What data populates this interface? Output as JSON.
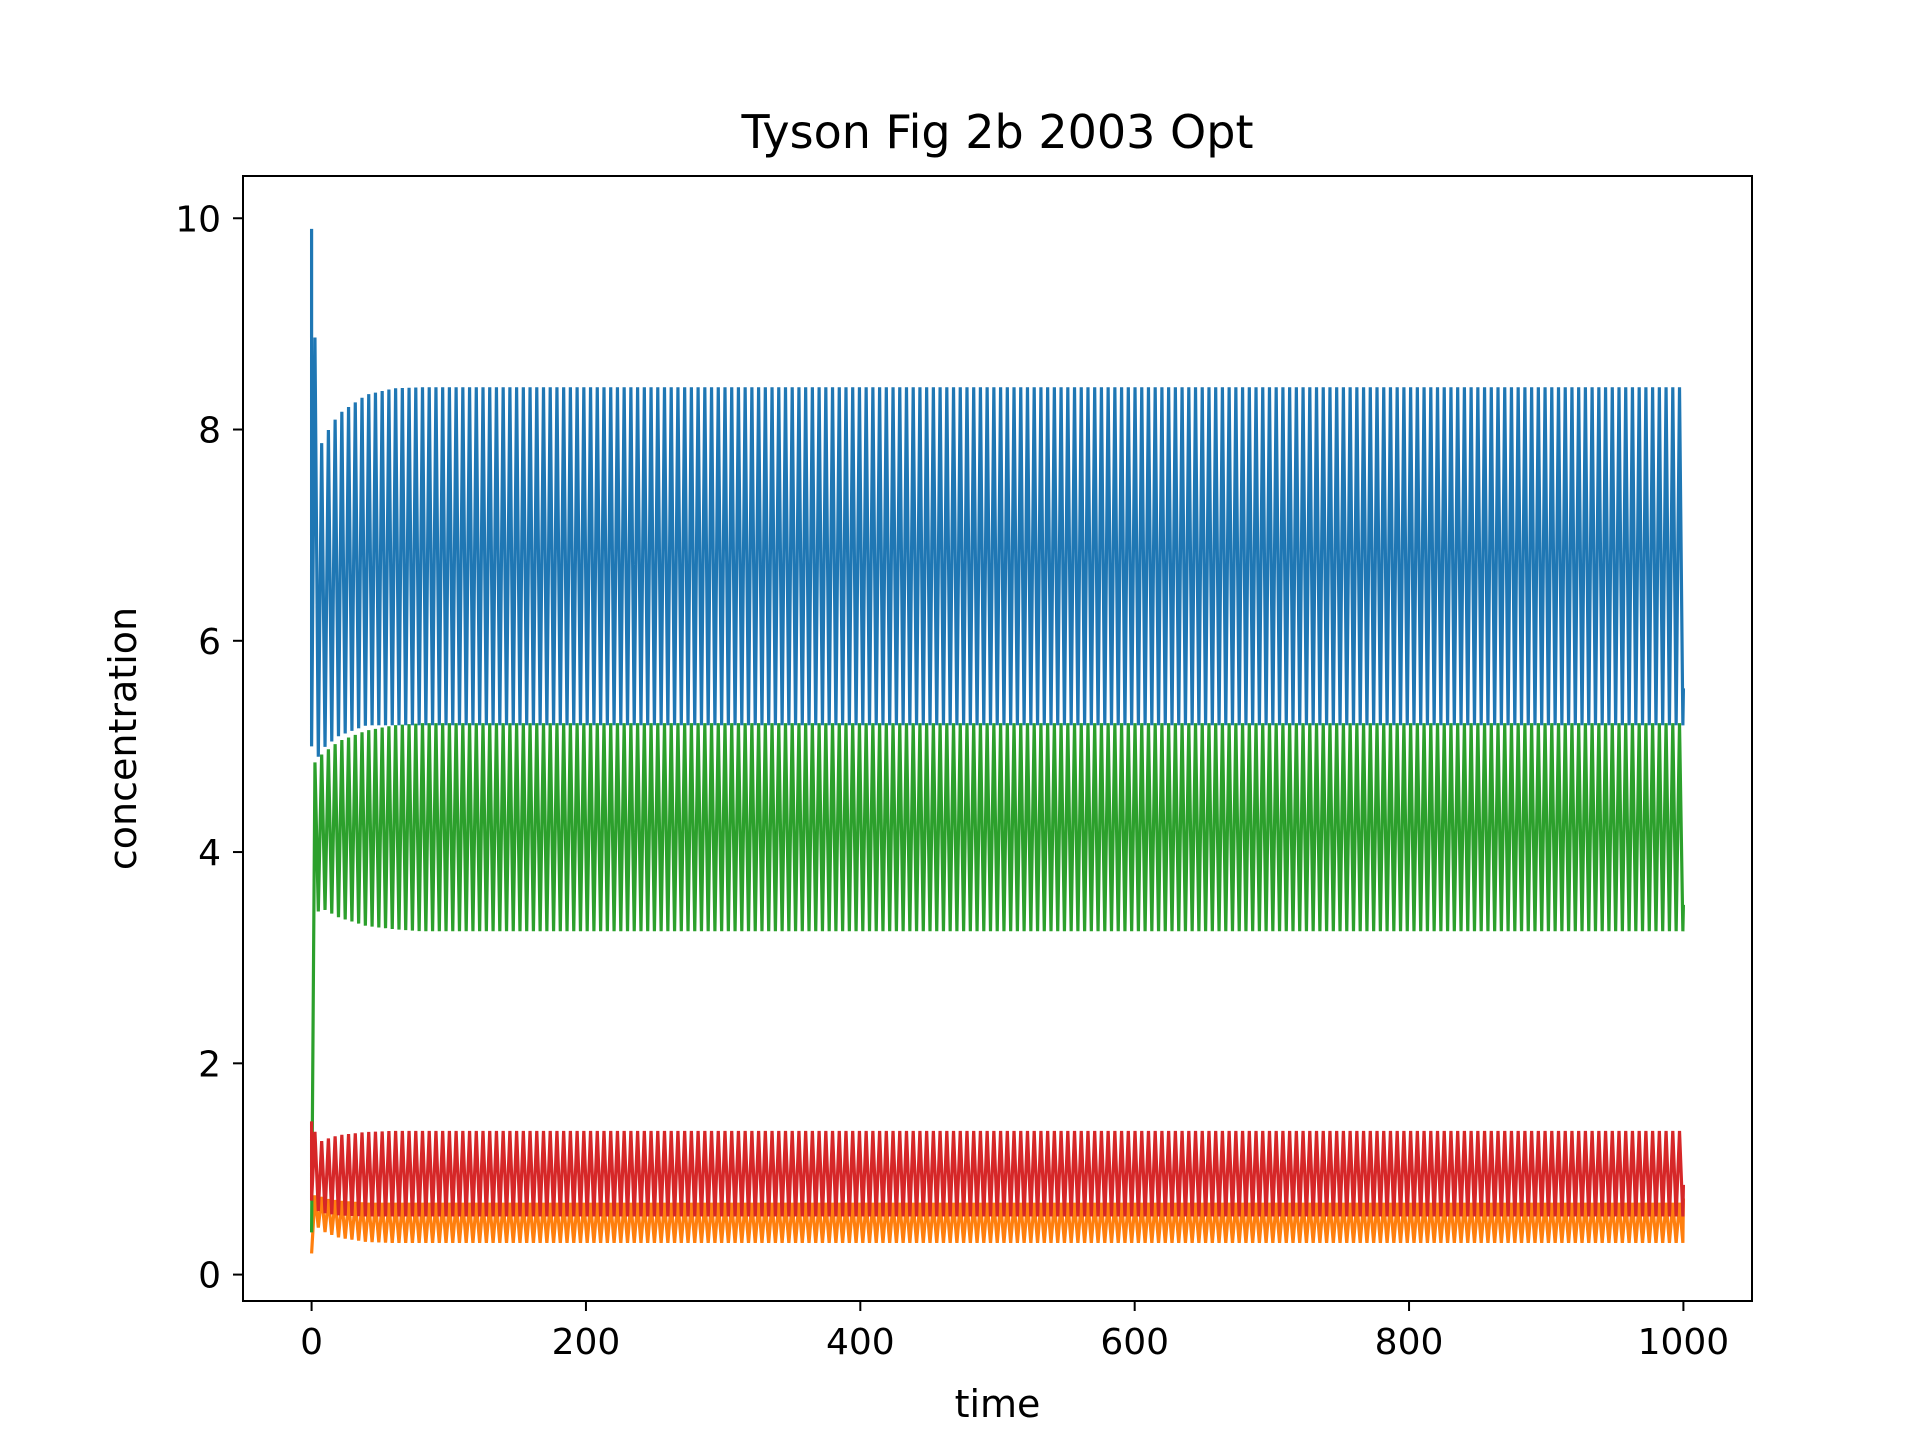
{
  "chart_data": {
    "type": "line",
    "title": "Tyson Fig 2b 2003 Opt",
    "xlabel": "time",
    "ylabel": "concentration",
    "xlim": [
      -50,
      1050
    ],
    "ylim": [
      -0.25,
      10.4
    ],
    "x_ticks": [
      0,
      200,
      400,
      600,
      800,
      1000
    ],
    "x_tick_labels": [
      "0",
      "200",
      "400",
      "600",
      "800",
      "1000"
    ],
    "y_ticks": [
      0,
      2,
      4,
      6,
      8,
      10
    ],
    "y_tick_labels": [
      "0",
      "2",
      "4",
      "6",
      "8",
      "10"
    ],
    "grid": false,
    "legend": "none",
    "period": 4.9,
    "series": [
      {
        "color": "#1f77b4",
        "initial_value": 9.9,
        "x": [
          0,
          5,
          10,
          20,
          40,
          60,
          80,
          100,
          200,
          400,
          600,
          800,
          1000
        ],
        "max": [
          9.9,
          7.8,
          7.95,
          8.15,
          8.33,
          8.39,
          8.4,
          8.4,
          8.4,
          8.4,
          8.4,
          8.4,
          8.4
        ],
        "min": [
          5.0,
          4.9,
          5.0,
          5.1,
          5.2,
          5.2,
          5.2,
          5.2,
          5.2,
          5.2,
          5.2,
          5.2,
          5.2
        ],
        "end_value": 5.55
      },
      {
        "color": "#ff7f0e",
        "initial_value": 0.2,
        "x": [
          0,
          5,
          10,
          20,
          40,
          60,
          80,
          100,
          200,
          400,
          600,
          800,
          1000
        ],
        "max": [
          0.75,
          0.75,
          0.72,
          0.7,
          0.68,
          0.68,
          0.68,
          0.68,
          0.68,
          0.68,
          0.68,
          0.68,
          0.68
        ],
        "min": [
          0.2,
          0.45,
          0.4,
          0.35,
          0.31,
          0.3,
          0.3,
          0.3,
          0.3,
          0.3,
          0.3,
          0.3,
          0.3
        ],
        "end_value": 0.72
      },
      {
        "color": "#2ca02c",
        "initial_value": 0.4,
        "x": [
          0,
          5,
          10,
          20,
          40,
          60,
          80,
          100,
          200,
          400,
          600,
          800,
          1000
        ],
        "max": [
          4.8,
          4.9,
          4.95,
          5.05,
          5.15,
          5.2,
          5.22,
          5.22,
          5.22,
          5.22,
          5.22,
          5.22,
          5.22
        ],
        "min": [
          0.4,
          3.5,
          3.45,
          3.38,
          3.3,
          3.27,
          3.25,
          3.25,
          3.25,
          3.25,
          3.25,
          3.25,
          3.25
        ],
        "end_value": 3.5
      },
      {
        "color": "#d62728",
        "initial_value": 1.45,
        "x": [
          0,
          5,
          10,
          20,
          40,
          60,
          80,
          100,
          200,
          400,
          600,
          800,
          1000
        ],
        "max": [
          1.45,
          1.25,
          1.28,
          1.32,
          1.35,
          1.36,
          1.36,
          1.36,
          1.36,
          1.36,
          1.36,
          1.36,
          1.36
        ],
        "min": [
          0.7,
          0.6,
          0.58,
          0.56,
          0.55,
          0.55,
          0.55,
          0.55,
          0.55,
          0.55,
          0.55,
          0.55,
          0.55
        ],
        "end_value": 0.85
      }
    ]
  }
}
